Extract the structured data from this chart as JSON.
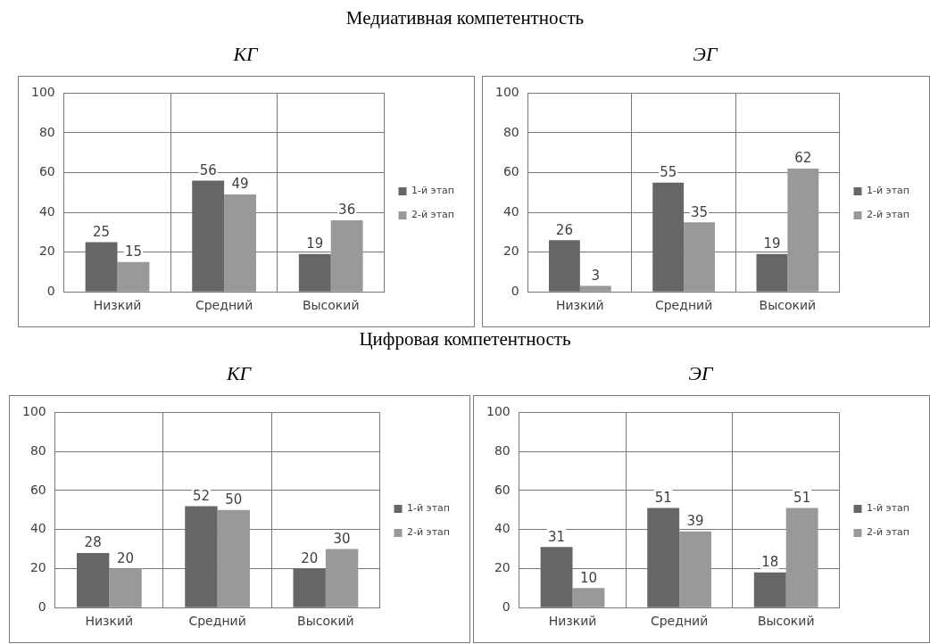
{
  "chart_data": [
    {
      "type": "bar",
      "title": "КГ",
      "annotations": [
        "Медиативная компетентность"
      ],
      "categories": [
        "Низкий",
        "Средний",
        "Высокий"
      ],
      "series": [
        {
          "name": "1-й этап",
          "color": "#666666",
          "values": [
            25,
            56,
            19
          ]
        },
        {
          "name": "2-й этап",
          "color": "#999999",
          "values": [
            15,
            49,
            36
          ]
        }
      ],
      "ylim": [
        0,
        100
      ],
      "yticks": [
        0,
        20,
        40,
        60,
        80,
        100
      ],
      "grid": true,
      "legend": "right",
      "data_labels": true
    },
    {
      "type": "bar",
      "title": "ЭГ",
      "categories": [
        "Низкий",
        "Средний",
        "Высокий"
      ],
      "series": [
        {
          "name": "1-й этап",
          "color": "#666666",
          "values": [
            26,
            55,
            19
          ]
        },
        {
          "name": "2-й этап",
          "color": "#999999",
          "values": [
            3,
            35,
            62
          ]
        }
      ],
      "ylim": [
        0,
        100
      ],
      "yticks": [
        0,
        20,
        40,
        60,
        80,
        100
      ],
      "grid": true,
      "legend": "right",
      "data_labels": true
    },
    {
      "type": "bar",
      "title": "КГ",
      "annotations": [
        "Цифровая компетентность"
      ],
      "categories": [
        "Низкий",
        "Средний",
        "Высокий"
      ],
      "series": [
        {
          "name": "1-й этап",
          "color": "#666666",
          "values": [
            28,
            52,
            20
          ]
        },
        {
          "name": "2-й этап",
          "color": "#999999",
          "values": [
            20,
            50,
            30
          ]
        }
      ],
      "ylim": [
        0,
        100
      ],
      "yticks": [
        0,
        20,
        40,
        60,
        80,
        100
      ],
      "grid": true,
      "legend": "right",
      "data_labels": true
    },
    {
      "type": "bar",
      "title": "ЭГ",
      "categories": [
        "Низкий",
        "Средний",
        "Высокий"
      ],
      "series": [
        {
          "name": "1-й этап",
          "color": "#666666",
          "values": [
            31,
            51,
            18
          ]
        },
        {
          "name": "2-й этап",
          "color": "#999999",
          "values": [
            10,
            39,
            51
          ]
        }
      ],
      "ylim": [
        0,
        100
      ],
      "yticks": [
        0,
        20,
        40,
        60,
        80,
        100
      ],
      "grid": true,
      "legend": "right",
      "data_labels": true
    }
  ]
}
